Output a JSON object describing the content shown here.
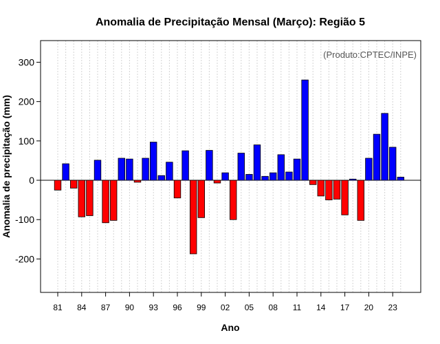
{
  "chart_data": {
    "type": "bar",
    "title": "Anomalia de Precipitação Mensal (Março): Região 5",
    "xlabel": "Ano",
    "ylabel": "Anomalia de precipitação (mm)",
    "annotation": "(Produto:CPTEC/INPE)",
    "ylim": [
      -285,
      355
    ],
    "yticks": [
      -200,
      -100,
      0,
      100,
      200,
      300
    ],
    "grid": true,
    "x_years": [
      1981,
      1982,
      1983,
      1984,
      1985,
      1986,
      1987,
      1988,
      1989,
      1990,
      1991,
      1992,
      1993,
      1994,
      1995,
      1996,
      1997,
      1998,
      1999,
      2000,
      2001,
      2002,
      2003,
      2004,
      2005,
      2006,
      2007,
      2008,
      2009,
      2010,
      2011,
      2012,
      2013,
      2014,
      2015,
      2016,
      2017,
      2018,
      2019,
      2020,
      2021,
      2022,
      2023,
      2024
    ],
    "xtick_labels": [
      "81",
      "84",
      "87",
      "90",
      "93",
      "96",
      "99",
      "02",
      "05",
      "08",
      "11",
      "14",
      "17",
      "20",
      "23"
    ],
    "xtick_index": [
      0,
      3,
      6,
      9,
      12,
      15,
      18,
      21,
      24,
      27,
      30,
      33,
      36,
      39,
      42
    ],
    "values": [
      -25,
      42,
      -20,
      -93,
      -90,
      51,
      -108,
      -102,
      56,
      54,
      -5,
      56,
      97,
      12,
      46,
      -45,
      75,
      -187,
      -95,
      76,
      -7,
      19,
      -100,
      69,
      15,
      90,
      10,
      19,
      65,
      21,
      54,
      255,
      -11,
      -40,
      -50,
      -48,
      -88,
      3,
      -102,
      56,
      117,
      170,
      84,
      8
    ],
    "colors": {
      "positive": "#0000ff",
      "negative": "#ff0000",
      "zero_line": "#000000",
      "grid": "#d3d3d3"
    }
  }
}
